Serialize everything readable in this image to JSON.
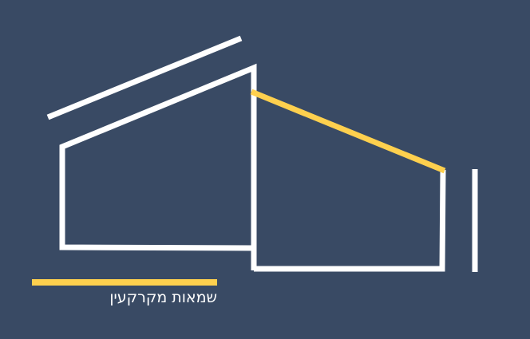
{
  "logo": {
    "tagline": "שמאות מקרקעין",
    "icon": "house-outline-icon"
  },
  "colors": {
    "background": "#394a64",
    "line": "#ffffff",
    "accent": "#fed04e",
    "text": "#ffffff"
  }
}
